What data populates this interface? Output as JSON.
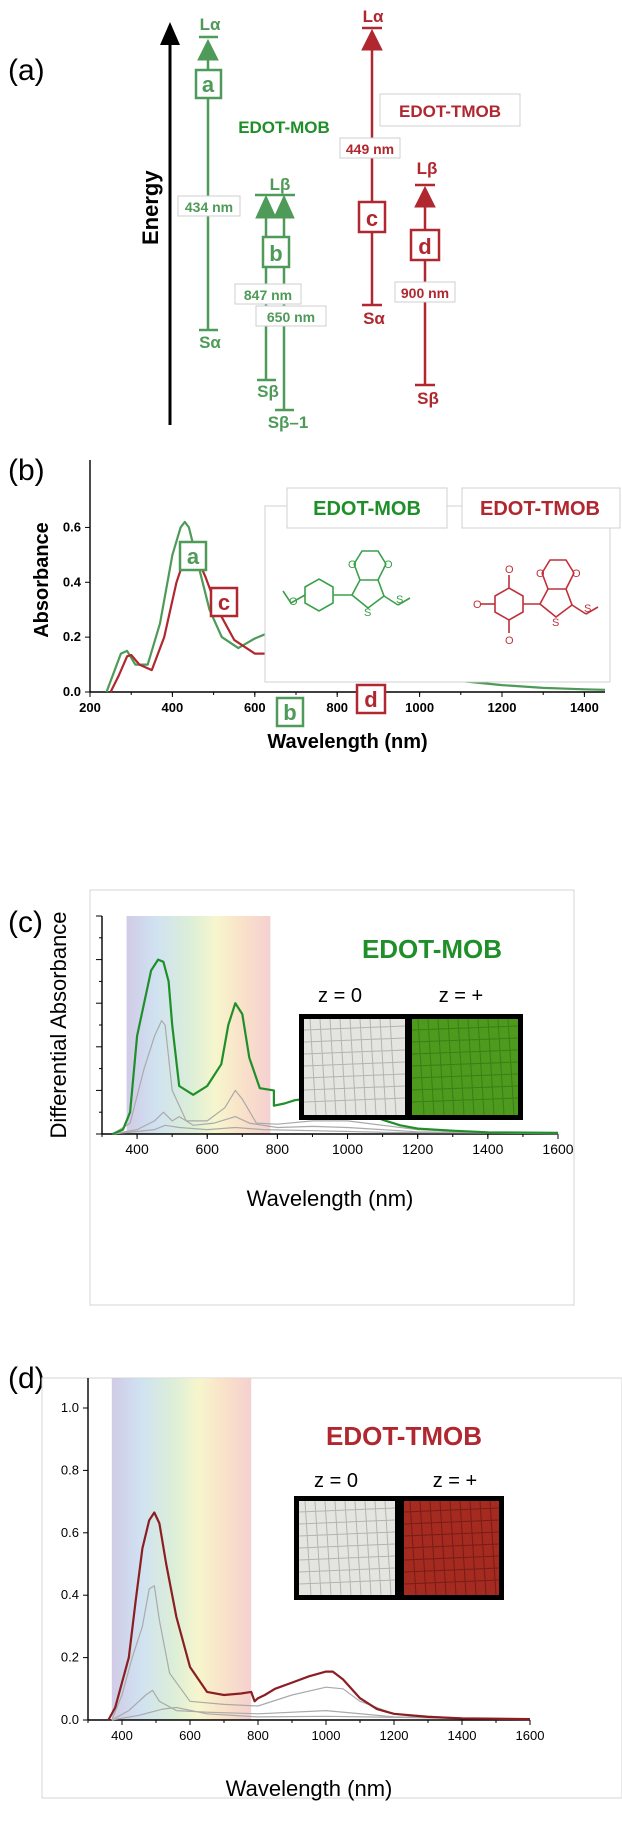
{
  "colors": {
    "mob": "#4e9a58",
    "tmob": "#b0272f",
    "mob_bright": "#1f8f2a",
    "axis": "#000000",
    "grey": "#aaaaaa"
  },
  "panel_a": {
    "label": "(a)",
    "energy_label": "Energy",
    "mob_name": "EDOT-MOB",
    "tmob_name": "EDOT-TMOB",
    "levels": {
      "la": "Lα",
      "sa": "Sα",
      "lb": "Lβ",
      "sb": "Sβ",
      "sb1": "Sβ–1"
    },
    "transitions": {
      "a": "a",
      "b": "b",
      "c": "c",
      "d": "d"
    },
    "wavelengths": {
      "a": "434 nm",
      "b1": "847 nm",
      "b2": "650 nm",
      "c": "449 nm",
      "d": "900 nm"
    }
  },
  "panel_b": {
    "label": "(b)",
    "mob_name": "EDOT-MOB",
    "tmob_name": "EDOT-TMOB",
    "peak_labels": {
      "a": "a",
      "b": "b",
      "c": "c",
      "d": "d"
    },
    "structure_labels": {
      "o": "O",
      "s": "S"
    }
  },
  "panel_c": {
    "label": "(c)",
    "name": "EDOT-MOB",
    "z0": "z = 0",
    "zplus": "z = +"
  },
  "panel_d": {
    "label": "(d)",
    "name": "EDOT-TMOB",
    "z0": "z = 0",
    "zplus": "z = +"
  },
  "chart_data": [
    {
      "type": "line",
      "title": "",
      "xlabel": "Wavelength (nm)",
      "ylabel": "Absorbance",
      "xlim": [
        200,
        1450
      ],
      "ylim": [
        0,
        0.7
      ],
      "xticks": [
        "200",
        "400",
        "600",
        "800",
        "1000",
        "1200",
        "1400"
      ],
      "yticks": [
        "0.0",
        "0.2",
        "0.4",
        "0.6"
      ],
      "series": [
        {
          "name": "EDOT-MOB",
          "color": "#4e9a58",
          "x": [
            240,
            260,
            275,
            290,
            310,
            340,
            370,
            400,
            420,
            430,
            440,
            460,
            490,
            520,
            560,
            600,
            640,
            680,
            720,
            800,
            900,
            1000,
            1100,
            1200,
            1300,
            1400,
            1450
          ],
          "y": [
            0.0,
            0.08,
            0.14,
            0.15,
            0.1,
            0.1,
            0.25,
            0.5,
            0.6,
            0.62,
            0.6,
            0.48,
            0.3,
            0.2,
            0.16,
            0.195,
            0.22,
            0.225,
            0.215,
            0.17,
            0.11,
            0.065,
            0.04,
            0.025,
            0.015,
            0.01,
            0.008
          ]
        },
        {
          "name": "EDOT-TMOB",
          "color": "#b0272f",
          "x": [
            250,
            270,
            290,
            300,
            320,
            350,
            380,
            410,
            430,
            445,
            460,
            480,
            510,
            550,
            600,
            650,
            700,
            800,
            900,
            950,
            1000,
            1100,
            1200,
            1300,
            1400,
            1450
          ],
          "y": [
            0.0,
            0.06,
            0.13,
            0.135,
            0.1,
            0.08,
            0.2,
            0.4,
            0.49,
            0.51,
            0.49,
            0.42,
            0.3,
            0.19,
            0.14,
            0.14,
            0.17,
            0.235,
            0.265,
            0.26,
            0.245,
            0.2,
            0.15,
            0.105,
            0.07,
            0.055
          ]
        }
      ]
    },
    {
      "type": "line",
      "title": "EDOT-MOB",
      "xlabel": "Wavelength (nm)",
      "ylabel": "Differential Absorbance",
      "xlim": [
        300,
        1600
      ],
      "ylim": [
        0,
        1.0
      ],
      "xticks": [
        "400",
        "600",
        "800",
        "1000",
        "1200",
        "1400",
        "1600"
      ],
      "series": [
        {
          "name": "z = +",
          "color": "#1f8f2a",
          "x": [
            330,
            360,
            380,
            400,
            420,
            440,
            460,
            475,
            490,
            500,
            520,
            560,
            600,
            640,
            660,
            680,
            700,
            720,
            750,
            790,
            790,
            820,
            850,
            900,
            950,
            1000,
            1050,
            1100,
            1150,
            1200,
            1300,
            1400,
            1600
          ],
          "y": [
            0.0,
            0.02,
            0.1,
            0.45,
            0.6,
            0.75,
            0.8,
            0.79,
            0.7,
            0.5,
            0.22,
            0.18,
            0.22,
            0.32,
            0.5,
            0.6,
            0.55,
            0.35,
            0.21,
            0.2,
            0.13,
            0.14,
            0.155,
            0.165,
            0.16,
            0.14,
            0.1,
            0.065,
            0.04,
            0.025,
            0.015,
            0.008,
            0.005
          ]
        },
        {
          "name": "",
          "color": "#aaaaaa",
          "x": [
            330,
            380,
            420,
            450,
            470,
            480,
            500,
            540,
            600,
            650,
            680,
            700,
            740,
            800,
            900,
            1000,
            1100,
            1200,
            1400,
            1600
          ],
          "y": [
            0.0,
            0.05,
            0.3,
            0.45,
            0.52,
            0.5,
            0.2,
            0.06,
            0.06,
            0.12,
            0.2,
            0.16,
            0.05,
            0.045,
            0.06,
            0.06,
            0.04,
            0.02,
            0.008,
            0.005
          ]
        },
        {
          "name": "",
          "color": "#aaaaaa",
          "x": [
            330,
            400,
            450,
            475,
            500,
            520,
            560,
            620,
            680,
            720,
            800,
            900,
            1000,
            1200,
            1600
          ],
          "y": [
            0.0,
            0.02,
            0.06,
            0.1,
            0.06,
            0.08,
            0.04,
            0.05,
            0.08,
            0.05,
            0.03,
            0.035,
            0.03,
            0.01,
            0.003
          ]
        },
        {
          "name": "",
          "color": "#aaaaaa",
          "x": [
            330,
            450,
            480,
            520,
            600,
            680,
            760,
            900,
            1100,
            1600
          ],
          "y": [
            0.0,
            0.02,
            0.04,
            0.03,
            0.02,
            0.03,
            0.02,
            0.015,
            0.008,
            0.002
          ]
        }
      ],
      "background": "visible spectrum band 370–780 nm"
    },
    {
      "type": "line",
      "title": "EDOT-TMOB",
      "xlabel": "Wavelength (nm)",
      "ylabel": "",
      "xlim": [
        300,
        1600
      ],
      "ylim": [
        0,
        1.0
      ],
      "xticks": [
        "400",
        "600",
        "800",
        "1000",
        "1200",
        "1400",
        "1600"
      ],
      "yticks": [
        "0.0",
        "0.2",
        "0.4",
        "0.6",
        "0.8",
        "1.0"
      ],
      "series": [
        {
          "name": "z = +",
          "color": "#8b1e22",
          "x": [
            360,
            380,
            400,
            420,
            440,
            460,
            480,
            495,
            510,
            530,
            560,
            600,
            650,
            700,
            750,
            780,
            790,
            800,
            820,
            850,
            900,
            950,
            1000,
            1020,
            1050,
            1100,
            1150,
            1200,
            1300,
            1400,
            1600
          ],
          "y": [
            0.0,
            0.04,
            0.12,
            0.2,
            0.38,
            0.55,
            0.64,
            0.665,
            0.63,
            0.5,
            0.33,
            0.17,
            0.09,
            0.08,
            0.085,
            0.09,
            0.06,
            0.07,
            0.08,
            0.1,
            0.12,
            0.14,
            0.155,
            0.155,
            0.13,
            0.07,
            0.035,
            0.02,
            0.01,
            0.005,
            0.003
          ]
        },
        {
          "name": "",
          "color": "#aaaaaa",
          "x": [
            370,
            400,
            430,
            460,
            480,
            495,
            510,
            540,
            600,
            700,
            800,
            900,
            1000,
            1050,
            1100,
            1200,
            1400,
            1600
          ],
          "y": [
            0.0,
            0.08,
            0.2,
            0.3,
            0.42,
            0.43,
            0.32,
            0.15,
            0.06,
            0.05,
            0.045,
            0.08,
            0.105,
            0.1,
            0.06,
            0.02,
            0.005,
            0.002
          ]
        },
        {
          "name": "",
          "color": "#aaaaaa",
          "x": [
            370,
            420,
            470,
            490,
            510,
            560,
            650,
            800,
            1000,
            1200,
            1600
          ],
          "y": [
            0.0,
            0.03,
            0.08,
            0.095,
            0.06,
            0.03,
            0.025,
            0.02,
            0.03,
            0.01,
            0.002
          ]
        },
        {
          "name": "",
          "color": "#aaaaaa",
          "x": [
            370,
            450,
            520,
            560,
            650,
            800,
            1000,
            1600
          ],
          "y": [
            0.0,
            0.015,
            0.035,
            0.04,
            0.02,
            0.01,
            0.012,
            0.002
          ]
        }
      ],
      "background": "visible spectrum band 370–780 nm"
    }
  ]
}
